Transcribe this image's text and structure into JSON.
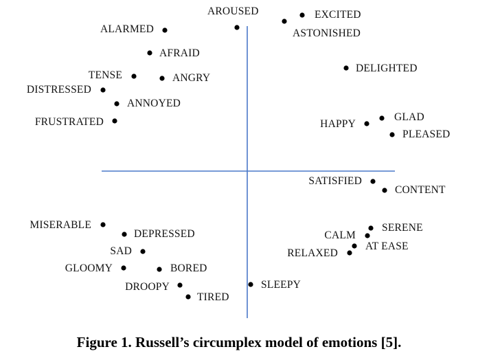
{
  "caption": "Figure 1. Russell’s circumplex model of emotions [5].",
  "colors": {
    "axis": "#4a78c8",
    "point": "#000000",
    "text": "#111111"
  },
  "emotions": [
    {
      "label": "AROUSED"
    },
    {
      "label": "EXCITED"
    },
    {
      "label": "ASTONISHED"
    },
    {
      "label": "ALARMED"
    },
    {
      "label": "AFRAID"
    },
    {
      "label": "DELIGHTED"
    },
    {
      "label": "TENSE"
    },
    {
      "label": "ANGRY"
    },
    {
      "label": "DISTRESSED"
    },
    {
      "label": "ANNOYED"
    },
    {
      "label": "GLAD"
    },
    {
      "label": "HAPPY"
    },
    {
      "label": "FRUSTRATED"
    },
    {
      "label": "PLEASED"
    },
    {
      "label": "SATISFIED"
    },
    {
      "label": "CONTENT"
    },
    {
      "label": "MISERABLE"
    },
    {
      "label": "DEPRESSED"
    },
    {
      "label": "SERENE"
    },
    {
      "label": "CALM"
    },
    {
      "label": "SAD"
    },
    {
      "label": "AT EASE"
    },
    {
      "label": "RELAXED"
    },
    {
      "label": "GLOOMY"
    },
    {
      "label": "BORED"
    },
    {
      "label": "DROOPY"
    },
    {
      "label": "SLEEPY"
    },
    {
      "label": "TIRED"
    }
  ]
}
